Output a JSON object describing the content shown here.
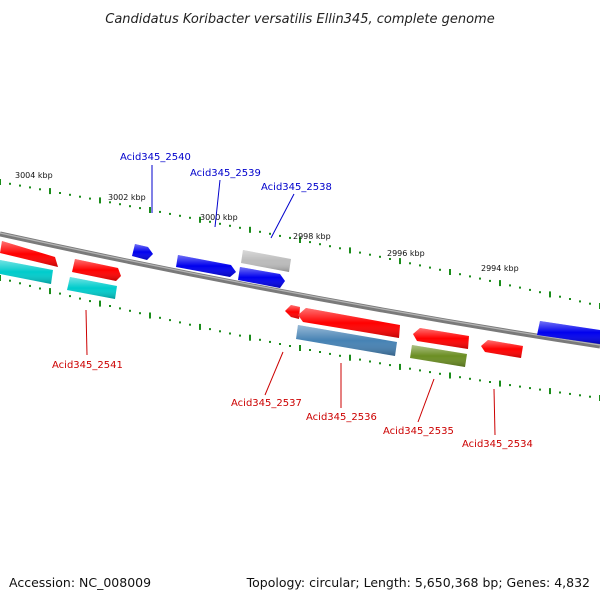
{
  "title": "Candidatus Koribacter versatilis Ellin345, complete genome",
  "footer": {
    "accession": "Accession: NC_008009",
    "summary": "Topology: circular; Length: 5,650,368 bp; Genes: 4,832"
  },
  "colors": {
    "label_upper": "#0000cc",
    "label_lower": "#cc0000",
    "tick": "#1a8c1a",
    "backbone": "#7a7a7a"
  },
  "ruler_labels": [
    "3004 kbp",
    "3002 kbp",
    "3000 kbp",
    "2998 kbp",
    "2996 kbp",
    "2994 kbp"
  ],
  "gene_labels_upper": [
    "Acid345_2540",
    "Acid345_2539",
    "Acid345_2538"
  ],
  "gene_labels_lower": [
    "Acid345_2541",
    "Acid345_2537",
    "Acid345_2536",
    "Acid345_2535",
    "Acid345_2534"
  ],
  "feature_colors": {
    "red": "#ff0000",
    "blue": "#0000ee",
    "cyan": "#00cccc",
    "grey": "#bbbbbb",
    "steelblue": "#4682b4",
    "olive": "#6b8e23"
  }
}
